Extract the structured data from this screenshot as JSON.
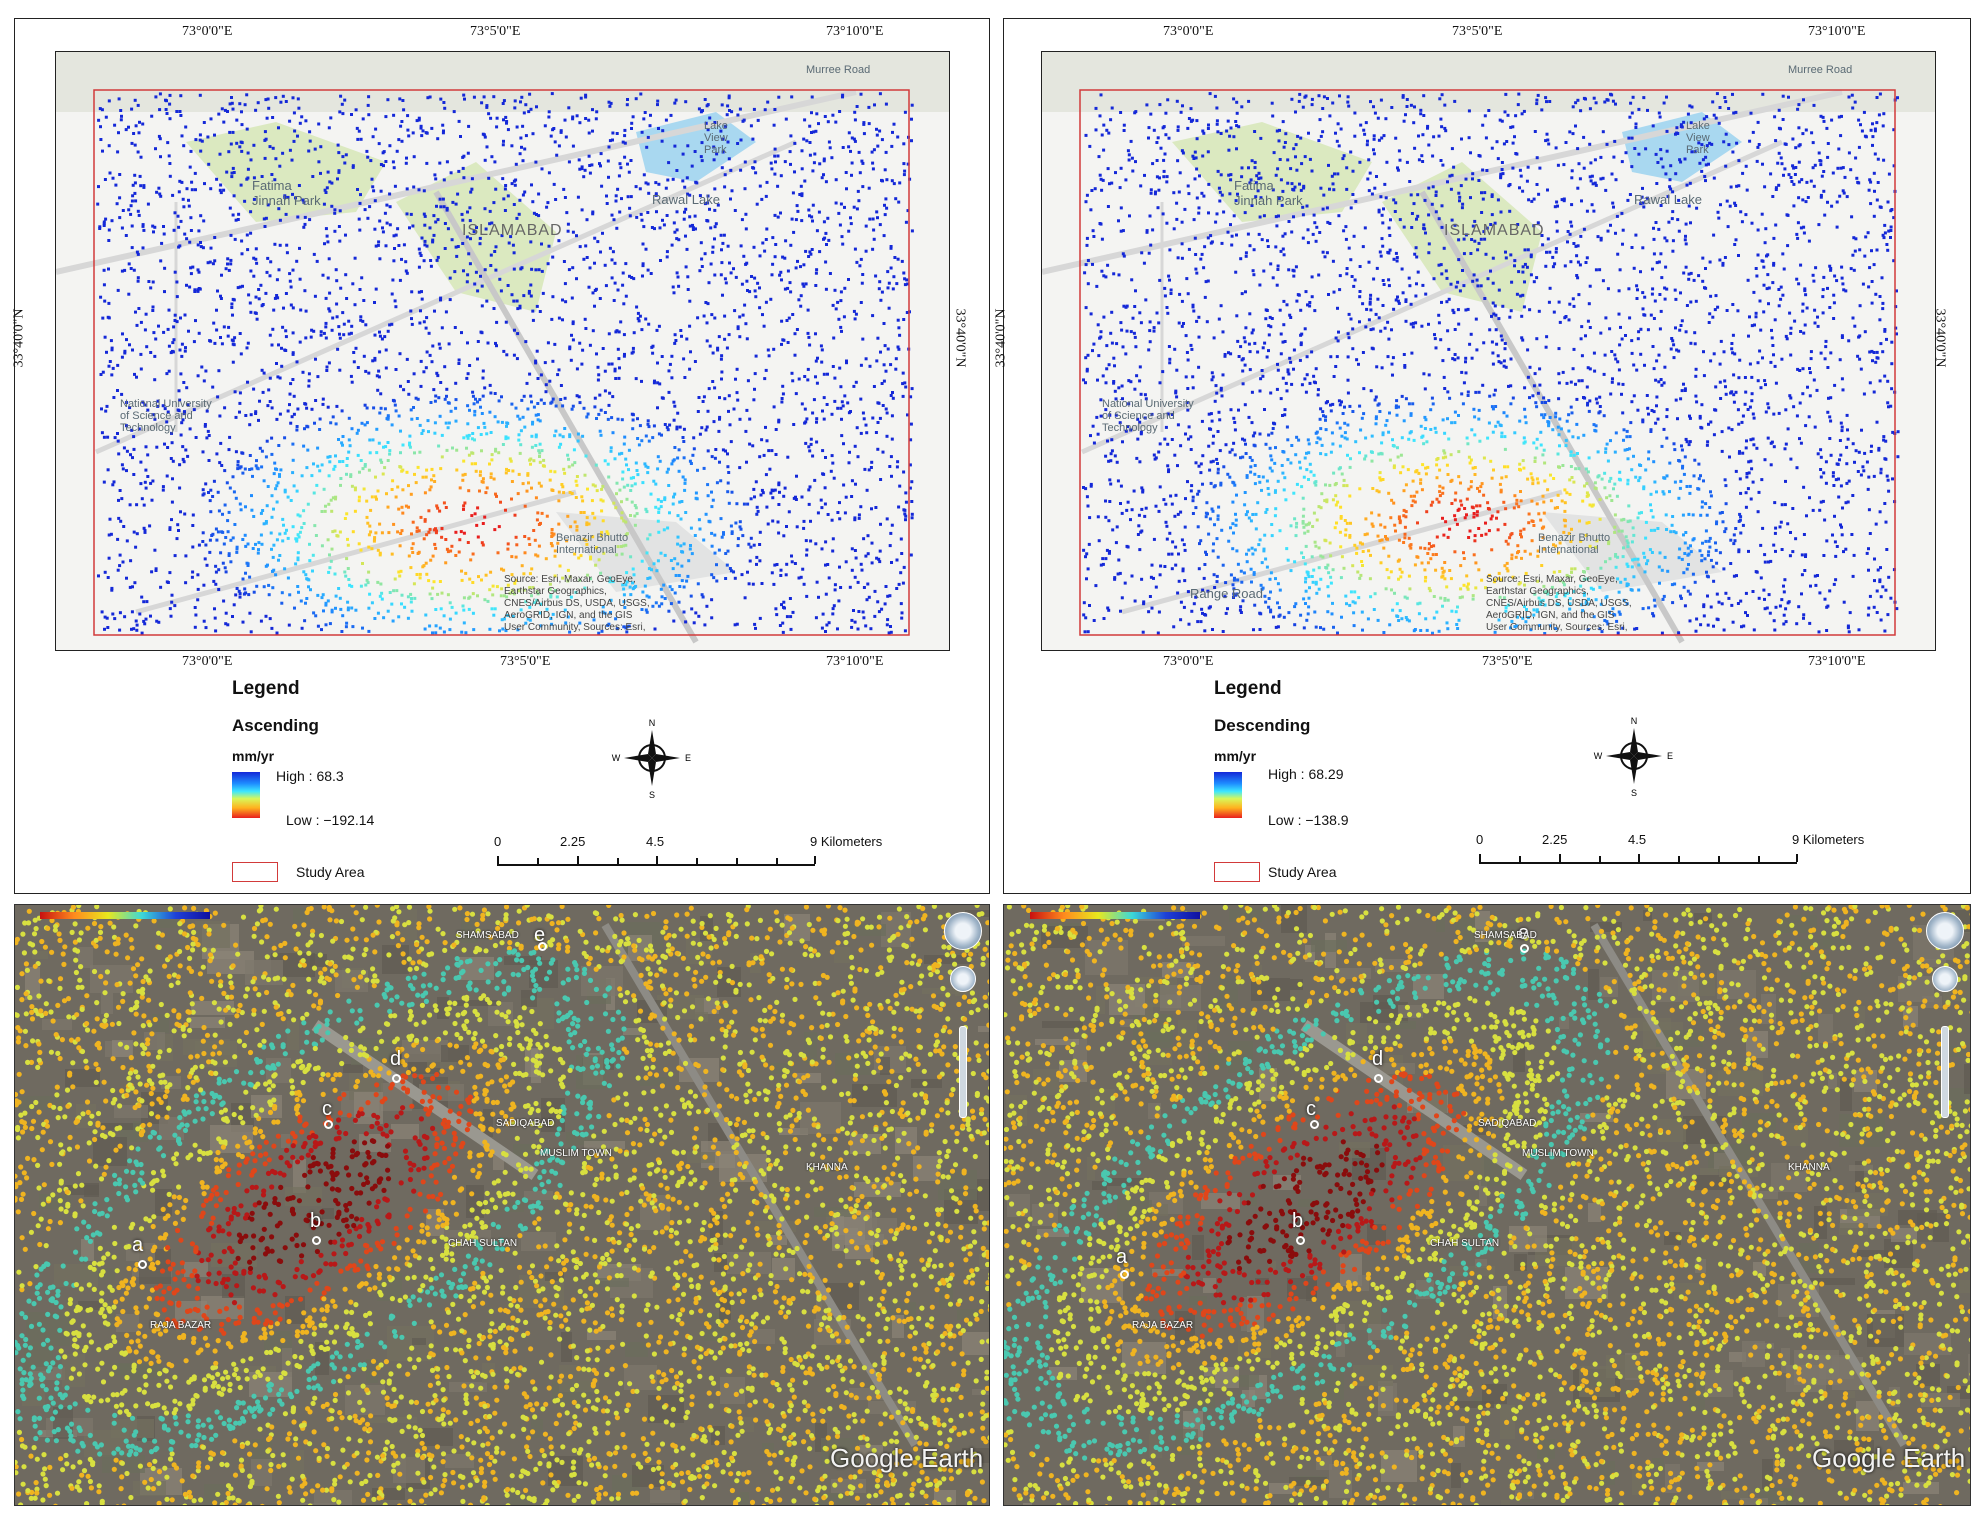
{
  "colors": {
    "ramp_high": "#1428d8",
    "ramp_low": "#e81e1e",
    "study_area": "#d23a3a",
    "park": "#dbe9c0",
    "lake": "#a9d8f0"
  },
  "coordinate_labels": {
    "top": [
      "73°0'0\"E",
      "73°5'0\"E",
      "73°10'0\"E"
    ],
    "bottom": [
      "73°0'0\"E",
      "73°5'0\"E",
      "73°10'0\"E"
    ],
    "side": "33°40'0\"N"
  },
  "map_place_labels": {
    "city": "ISLAMABAD",
    "park": "Fatima Jinnah Park",
    "lake": "Rawal Lake",
    "lake_view": "Lake View Park",
    "airport": "Benazir Bhutto International",
    "university": "National University of Science and Technology",
    "range_road": "Range Road",
    "murree_road": "Murree Road"
  },
  "attribution": "Source: Esri, Maxar, GeoEye,\nEarthstar Geographics,\nCNES/Airbus DS, USDA, USGS,\nAeroGRID, IGN, and the GIS\nUser Community, Sources: Esri,",
  "panels": [
    {
      "legend_title": "Legend",
      "orbit": "Ascending",
      "unit": "mm/yr",
      "high": "High : 68.3",
      "low": "Low : −192.14",
      "study_area": "Study Area"
    },
    {
      "legend_title": "Legend",
      "orbit": "Descending",
      "unit": "mm/yr",
      "high": "High : 68.29",
      "low": "Low : −138.9",
      "study_area": "Study Area"
    }
  ],
  "north_arrow": {
    "n": "N",
    "s": "S",
    "e": "E",
    "w": "W"
  },
  "scale_bar": {
    "labels": [
      "0",
      "2.25",
      "4.5",
      "9 Kilometers"
    ]
  },
  "google_earth": {
    "logo": "Google Earth",
    "points": [
      "a",
      "b",
      "c",
      "d",
      "e"
    ],
    "places": [
      "RAJA BAZAR",
      "CHAH SULTAN",
      "SADIQABAD",
      "MUSLIM TOWN",
      "KHANNA",
      "SHAMSABAD"
    ]
  }
}
